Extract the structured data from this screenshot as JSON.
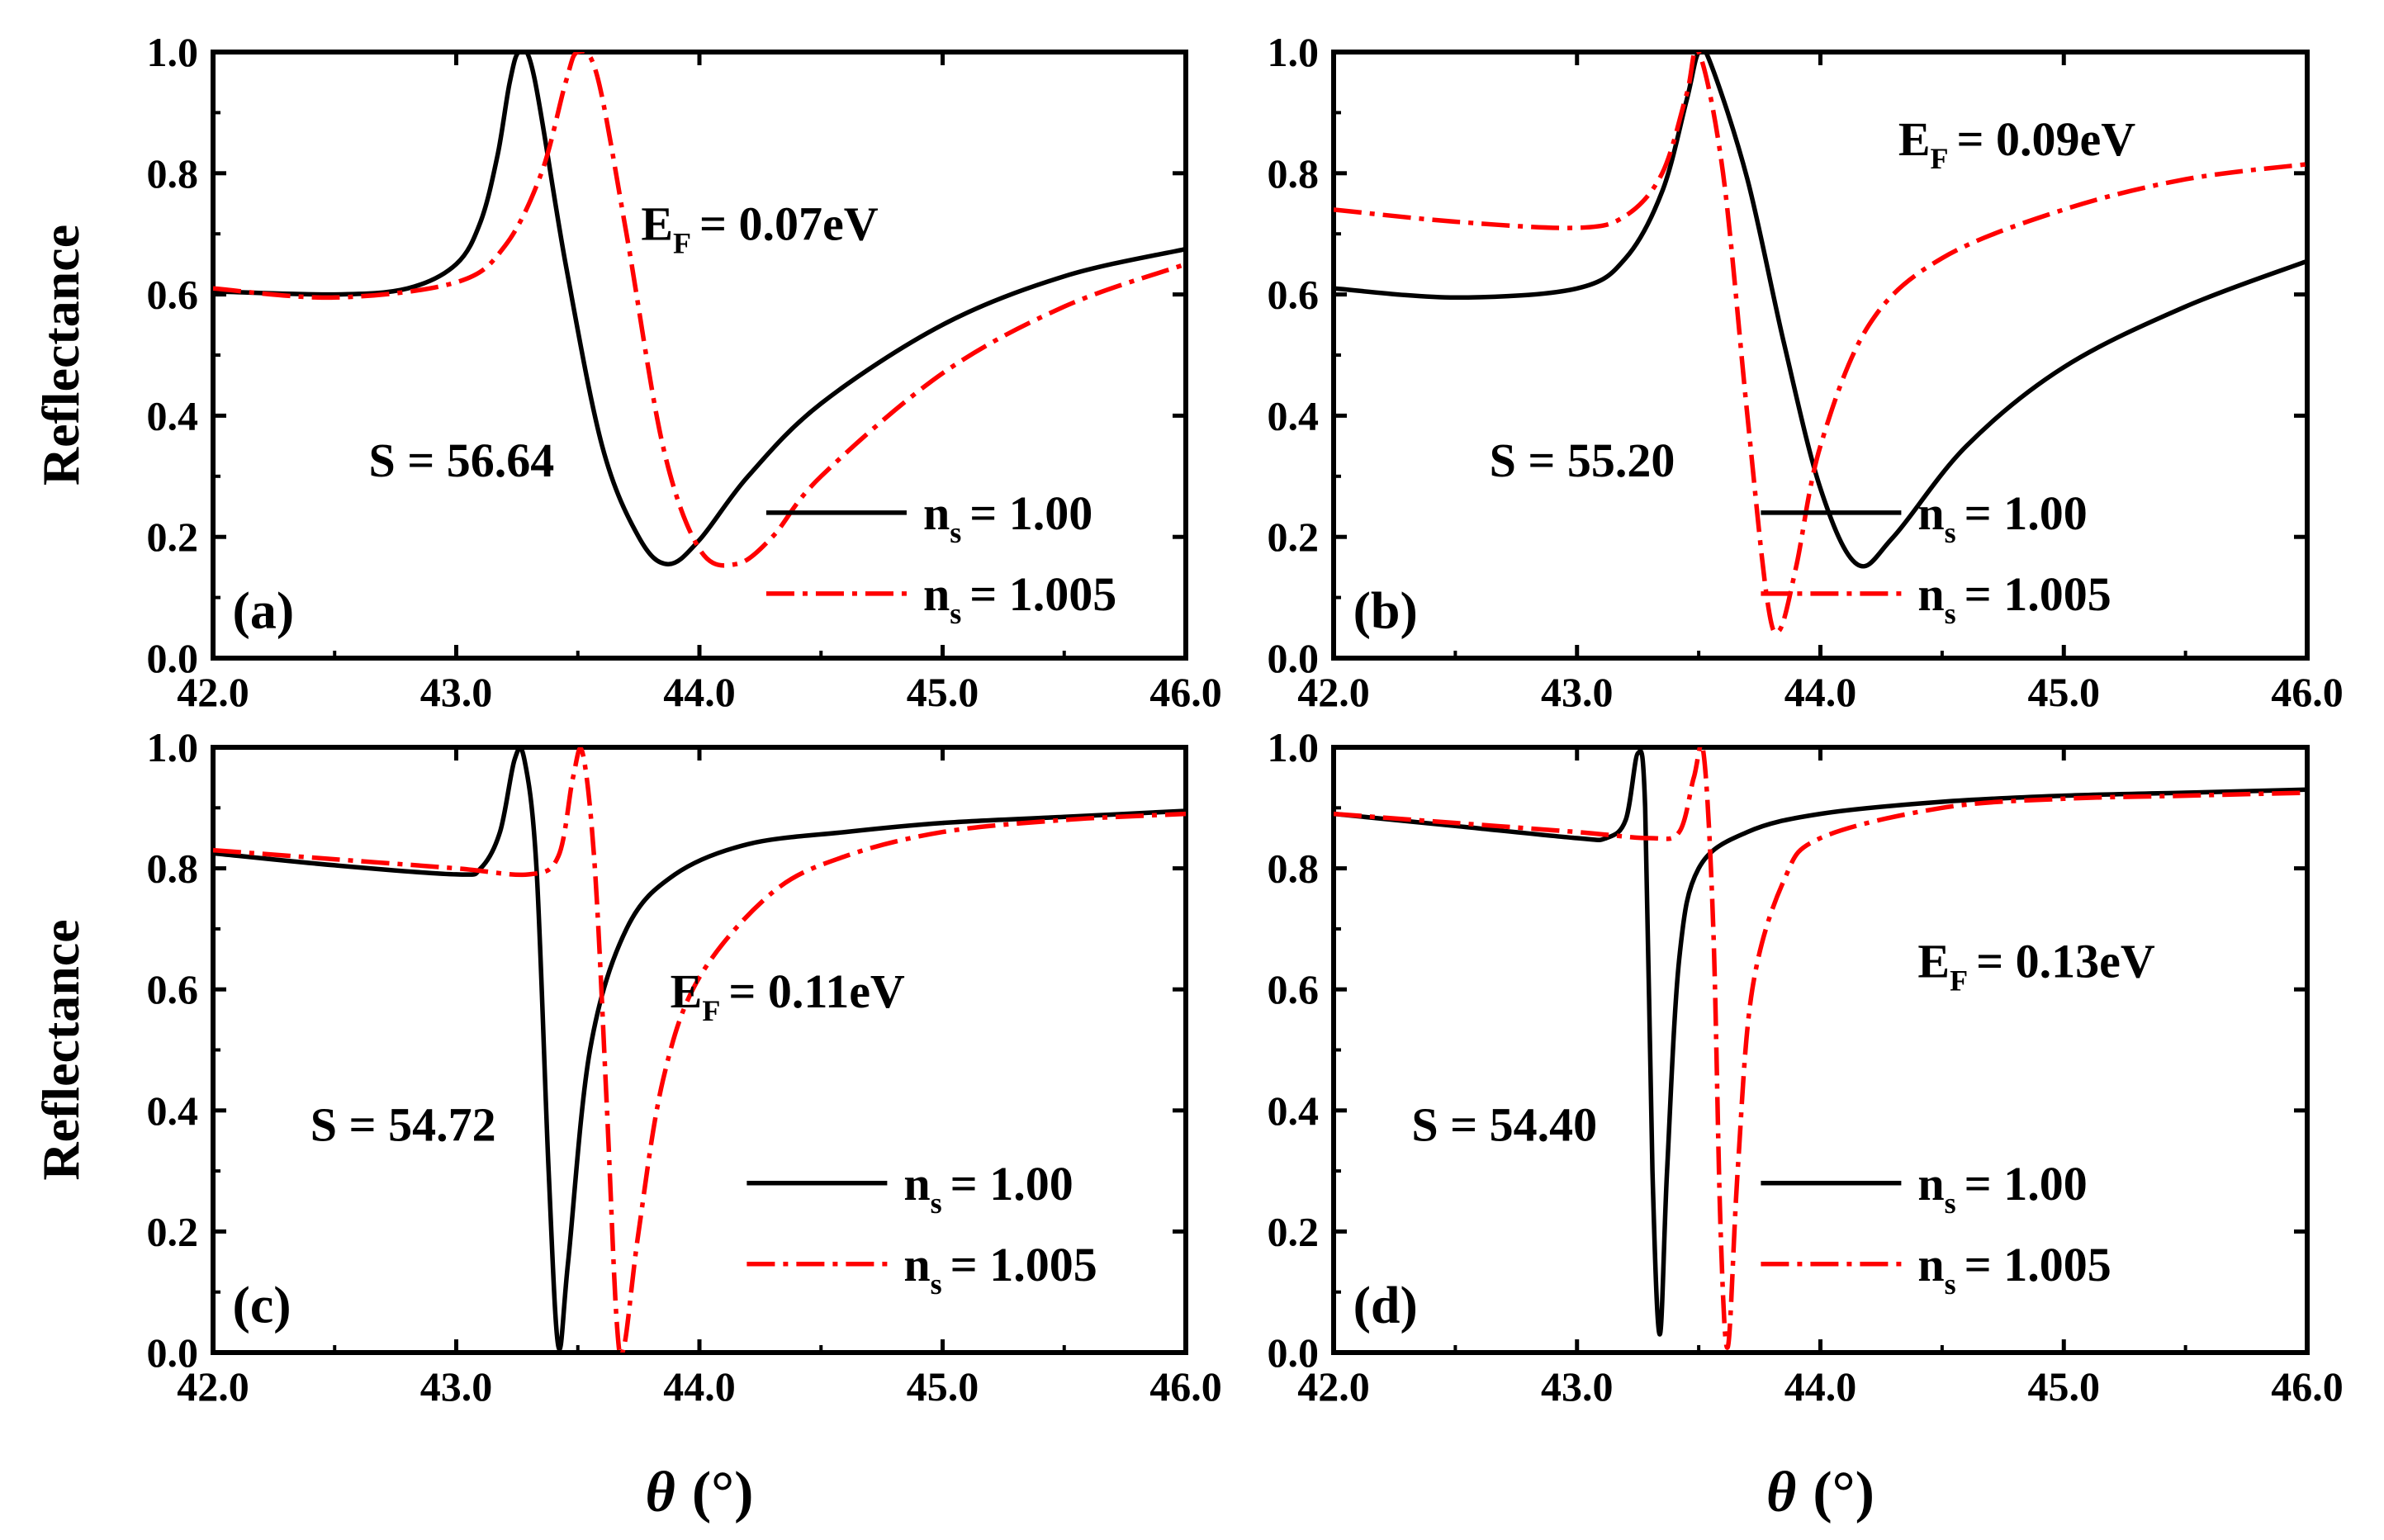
{
  "chart_data": [
    {
      "type": "line",
      "panel_label": "(a)",
      "annotation_ef": {
        "prefix": "E",
        "sub": "F",
        "text": "= 0.07eV"
      },
      "annotation_s": "S = 56.64",
      "xlabel_symbol": "θ",
      "xlabel_unit": "(°)",
      "ylabel": "Reflectance",
      "xlim": [
        42.0,
        46.0
      ],
      "ylim": [
        0.0,
        1.0
      ],
      "xticks": [
        "42.0",
        "43.0",
        "44.0",
        "45.0",
        "46.0"
      ],
      "yticks": [
        "0.0",
        "0.2",
        "0.4",
        "0.6",
        "0.8",
        "1.0"
      ],
      "legend_position": "bottom-right",
      "series": [
        {
          "name_prefix": "n",
          "name_sub": "s",
          "name_text": "= 1.00",
          "color": "#000000",
          "style": "solid",
          "x": [
            42.0,
            42.5,
            42.8,
            43.0,
            43.1,
            43.17,
            43.22,
            43.26,
            43.32,
            43.45,
            43.6,
            43.75,
            43.87,
            44.0,
            44.2,
            44.5,
            45.0,
            45.5,
            46.0
          ],
          "y": [
            0.605,
            0.6,
            0.61,
            0.65,
            0.72,
            0.83,
            0.95,
            1.0,
            0.96,
            0.65,
            0.35,
            0.2,
            0.155,
            0.195,
            0.3,
            0.42,
            0.55,
            0.63,
            0.675
          ]
        },
        {
          "name_prefix": "n",
          "name_sub": "s",
          "name_text": "= 1.005",
          "color": "#ff0000",
          "style": "dash-dot",
          "x": [
            42.0,
            42.5,
            43.0,
            43.2,
            43.35,
            43.45,
            43.5,
            43.58,
            43.7,
            43.85,
            44.0,
            44.15,
            44.3,
            44.5,
            45.0,
            45.5,
            46.0
          ],
          "y": [
            0.61,
            0.595,
            0.62,
            0.68,
            0.8,
            0.95,
            1.0,
            0.96,
            0.7,
            0.35,
            0.18,
            0.155,
            0.2,
            0.3,
            0.47,
            0.58,
            0.65
          ]
        }
      ]
    },
    {
      "type": "line",
      "panel_label": "(b)",
      "annotation_ef": {
        "prefix": "E",
        "sub": "F",
        "text": "= 0.09eV"
      },
      "annotation_s": "S = 55.20",
      "xlabel_symbol": "θ",
      "xlabel_unit": "(°)",
      "ylabel": "Reflectance",
      "xlim": [
        42.0,
        46.0
      ],
      "ylim": [
        0.0,
        1.0
      ],
      "xticks": [
        "42.0",
        "43.0",
        "44.0",
        "45.0",
        "46.0"
      ],
      "yticks": [
        "0.0",
        "0.2",
        "0.4",
        "0.6",
        "0.8",
        "1.0"
      ],
      "legend_position": "bottom-right",
      "series": [
        {
          "name_prefix": "n",
          "name_sub": "s",
          "name_text": "= 1.00",
          "color": "#000000",
          "style": "solid",
          "x": [
            42.0,
            42.5,
            43.0,
            43.2,
            43.35,
            43.45,
            43.5,
            43.55,
            43.7,
            43.85,
            44.0,
            44.15,
            44.3,
            44.6,
            45.0,
            45.5,
            46.0
          ],
          "y": [
            0.61,
            0.595,
            0.61,
            0.66,
            0.77,
            0.92,
            1.0,
            0.98,
            0.79,
            0.52,
            0.28,
            0.155,
            0.2,
            0.35,
            0.48,
            0.58,
            0.655
          ]
        },
        {
          "name_prefix": "n",
          "name_sub": "s",
          "name_text": "= 1.005",
          "color": "#ff0000",
          "style": "dash-dot",
          "x": [
            42.0,
            42.5,
            43.0,
            43.2,
            43.35,
            43.45,
            43.5,
            43.6,
            43.7,
            43.78,
            43.83,
            43.9,
            44.0,
            44.2,
            44.5,
            45.0,
            45.5,
            46.0
          ],
          "y": [
            0.74,
            0.72,
            0.71,
            0.73,
            0.8,
            0.93,
            1.0,
            0.8,
            0.4,
            0.1,
            0.045,
            0.15,
            0.35,
            0.55,
            0.66,
            0.74,
            0.79,
            0.815
          ]
        }
      ]
    },
    {
      "type": "line",
      "panel_label": "(c)",
      "annotation_ef": {
        "prefix": "E",
        "sub": "F",
        "text": "= 0.11eV"
      },
      "annotation_s": "S = 54.72",
      "xlabel_symbol": "θ",
      "xlabel_unit": "(°)",
      "ylabel": "Reflectance",
      "xlim": [
        42.0,
        46.0
      ],
      "ylim": [
        0.0,
        1.0
      ],
      "xticks": [
        "42.0",
        "43.0",
        "44.0",
        "45.0",
        "46.0"
      ],
      "yticks": [
        "0.0",
        "0.2",
        "0.4",
        "0.6",
        "0.8",
        "1.0"
      ],
      "legend_position": "bottom-right",
      "series": [
        {
          "name_prefix": "n",
          "name_sub": "s",
          "name_text": "= 1.00",
          "color": "#000000",
          "style": "solid",
          "x": [
            42.0,
            42.5,
            43.0,
            43.1,
            43.18,
            43.24,
            43.28,
            43.33,
            43.38,
            43.42,
            43.46,
            43.55,
            43.7,
            43.9,
            44.2,
            44.6,
            45.0,
            45.5,
            46.0
          ],
          "y": [
            0.825,
            0.805,
            0.79,
            0.8,
            0.86,
            0.98,
            0.98,
            0.8,
            0.3,
            0.01,
            0.15,
            0.5,
            0.7,
            0.79,
            0.84,
            0.86,
            0.875,
            0.885,
            0.895
          ]
        },
        {
          "name_prefix": "n",
          "name_sub": "s",
          "name_text": "= 1.005",
          "color": "#ff0000",
          "style": "dash-dot",
          "x": [
            42.0,
            42.5,
            43.0,
            43.3,
            43.42,
            43.48,
            43.52,
            43.57,
            43.62,
            43.66,
            43.69,
            43.75,
            43.85,
            44.0,
            44.3,
            44.6,
            45.0,
            45.5,
            46.0
          ],
          "y": [
            0.83,
            0.815,
            0.8,
            0.79,
            0.82,
            0.95,
            0.99,
            0.8,
            0.4,
            0.05,
            0.01,
            0.2,
            0.45,
            0.62,
            0.76,
            0.82,
            0.86,
            0.88,
            0.89
          ]
        }
      ]
    },
    {
      "type": "line",
      "panel_label": "(d)",
      "annotation_ef": {
        "prefix": "E",
        "sub": "F",
        "text": "= 0.13eV"
      },
      "annotation_s": "S = 54.40",
      "xlabel_symbol": "θ",
      "xlabel_unit": "(°)",
      "ylabel": "Reflectance",
      "xlim": [
        42.0,
        46.0
      ],
      "ylim": [
        0.0,
        1.0
      ],
      "xticks": [
        "42.0",
        "43.0",
        "44.0",
        "45.0",
        "46.0"
      ],
      "yticks": [
        "0.0",
        "0.2",
        "0.4",
        "0.6",
        "0.8",
        "1.0"
      ],
      "legend_position": "bottom-right",
      "series": [
        {
          "name_prefix": "n",
          "name_sub": "s",
          "name_text": "= 1.00",
          "color": "#000000",
          "style": "solid",
          "x": [
            42.0,
            42.5,
            43.0,
            43.12,
            43.2,
            43.25,
            43.28,
            43.31,
            43.34,
            43.37,
            43.42,
            43.5,
            43.7,
            44.0,
            44.5,
            45.0,
            45.5,
            46.0
          ],
          "y": [
            0.89,
            0.87,
            0.85,
            0.85,
            0.88,
            0.99,
            0.9,
            0.3,
            0.03,
            0.3,
            0.65,
            0.8,
            0.86,
            0.89,
            0.91,
            0.92,
            0.925,
            0.93
          ]
        },
        {
          "name_prefix": "n",
          "name_sub": "s",
          "name_text": "= 1.005",
          "color": "#ff0000",
          "style": "dash-dot",
          "x": [
            42.0,
            42.5,
            43.0,
            43.3,
            43.42,
            43.48,
            43.52,
            43.56,
            43.59,
            43.62,
            43.66,
            43.72,
            43.85,
            44.0,
            44.5,
            45.0,
            45.5,
            46.0
          ],
          "y": [
            0.89,
            0.875,
            0.86,
            0.85,
            0.86,
            0.95,
            0.99,
            0.7,
            0.2,
            0.01,
            0.3,
            0.6,
            0.78,
            0.85,
            0.9,
            0.915,
            0.92,
            0.925
          ]
        }
      ]
    }
  ]
}
